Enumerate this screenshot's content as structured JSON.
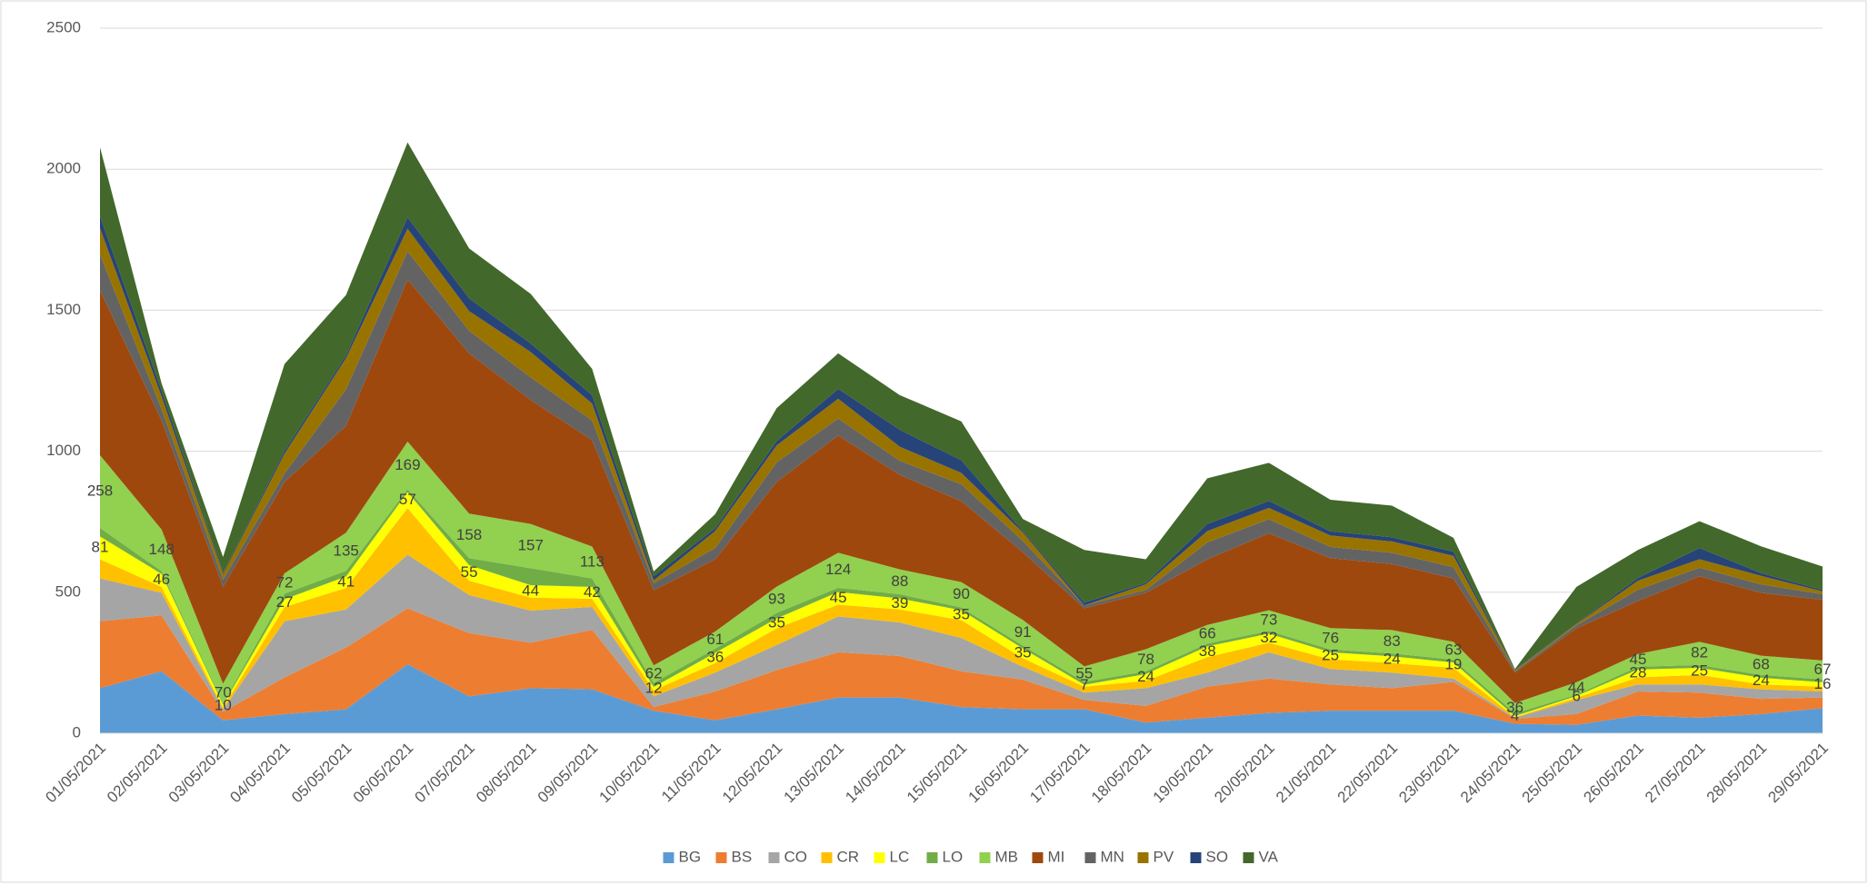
{
  "chart_data": {
    "type": "stacked_area",
    "categories": [
      "01/05/2021",
      "02/05/2021",
      "03/05/2021",
      "04/05/2021",
      "05/05/2021",
      "06/05/2021",
      "07/05/2021",
      "08/05/2021",
      "09/05/2021",
      "10/05/2021",
      "11/05/2021",
      "12/05/2021",
      "13/05/2021",
      "14/05/2021",
      "15/05/2021",
      "16/05/2021",
      "17/05/2021",
      "18/05/2021",
      "19/05/2021",
      "20/05/2021",
      "21/05/2021",
      "22/05/2021",
      "23/05/2021",
      "24/05/2021",
      "25/05/2021",
      "26/05/2021",
      "27/05/2021",
      "28/05/2021",
      "29/05/2021"
    ],
    "ylim": [
      0,
      2500
    ],
    "yticks": [
      0,
      500,
      1000,
      1500,
      2000,
      2500
    ],
    "grid": true,
    "legend": "bottom",
    "series": [
      {
        "name": "BG",
        "color": "#5b9bd5",
        "values": [
          160,
          220,
          46,
          68,
          85,
          245,
          131,
          160,
          156,
          80,
          46,
          85,
          127,
          127,
          93,
          85,
          85,
          38,
          55,
          72,
          80,
          80,
          80,
          34,
          30,
          63,
          55,
          68,
          89
        ]
      },
      {
        "name": "BS",
        "color": "#ed7d31",
        "values": [
          237,
          198,
          30,
          130,
          219,
          198,
          224,
          161,
          211,
          13,
          102,
          139,
          160,
          147,
          127,
          105,
          33,
          59,
          110,
          122,
          93,
          80,
          102,
          17,
          38,
          85,
          89,
          54,
          38
        ]
      },
      {
        "name": "CO",
        "color": "#a5a5a5",
        "values": [
          152,
          80,
          8,
          199,
          135,
          190,
          135,
          114,
          81,
          38,
          67,
          89,
          127,
          119,
          118,
          46,
          26,
          63,
          50,
          93,
          55,
          55,
          12,
          4,
          50,
          25,
          29,
          34,
          21
        ]
      },
      {
        "name": "CR",
        "color": "#ffc000",
        "values": [
          68,
          21,
          7,
          51,
          76,
          165,
          51,
          46,
          29,
          21,
          34,
          59,
          42,
          46,
          63,
          30,
          21,
          26,
          55,
          34,
          34,
          34,
          38,
          2,
          8,
          25,
          34,
          17,
          17
        ]
      },
      {
        "name": "LC",
        "color": "#ffff00",
        "labels": true,
        "values": [
          81,
          46,
          10,
          27,
          41,
          57,
          55,
          44,
          42,
          12,
          36,
          35,
          45,
          39,
          35,
          35,
          7,
          24,
          38,
          32,
          25,
          24,
          19,
          4,
          6,
          28,
          25,
          24,
          16
        ]
      },
      {
        "name": "LO",
        "color": "#70ad47",
        "values": [
          30,
          10,
          5,
          20,
          20,
          10,
          25,
          60,
          30,
          15,
          15,
          20,
          15,
          15,
          10,
          10,
          10,
          10,
          10,
          10,
          10,
          10,
          10,
          10,
          5,
          10,
          10,
          10,
          10
        ]
      },
      {
        "name": "MB",
        "color": "#92d050",
        "labels": true,
        "values": [
          258,
          148,
          70,
          72,
          135,
          169,
          158,
          157,
          113,
          62,
          61,
          93,
          124,
          88,
          90,
          91,
          55,
          78,
          66,
          73,
          76,
          83,
          63,
          36,
          44,
          45,
          82,
          68,
          67
        ]
      },
      {
        "name": "MI",
        "color": "#9e480e",
        "values": [
          585,
          387,
          343,
          324,
          379,
          575,
          568,
          440,
          377,
          266,
          256,
          371,
          416,
          335,
          287,
          240,
          206,
          200,
          233,
          273,
          248,
          234,
          225,
          108,
          191,
          188,
          233,
          223,
          215
        ]
      },
      {
        "name": "MN",
        "color": "#636363",
        "values": [
          127,
          40,
          25,
          30,
          130,
          100,
          80,
          80,
          70,
          25,
          40,
          70,
          60,
          50,
          60,
          40,
          10,
          10,
          60,
          50,
          40,
          40,
          40,
          5,
          10,
          40,
          30,
          30,
          20
        ]
      },
      {
        "name": "PV",
        "color": "#997300",
        "values": [
          93,
          45,
          20,
          70,
          110,
          80,
          70,
          90,
          60,
          10,
          60,
          60,
          70,
          50,
          40,
          30,
          0,
          20,
          40,
          40,
          40,
          40,
          40,
          3,
          5,
          32,
          30,
          30,
          10
        ]
      },
      {
        "name": "SO",
        "color": "#264478",
        "values": [
          42,
          20,
          5,
          10,
          10,
          40,
          45,
          30,
          30,
          15,
          10,
          15,
          35,
          60,
          45,
          5,
          10,
          5,
          25,
          25,
          15,
          15,
          15,
          2,
          2,
          10,
          40,
          10,
          5
        ]
      },
      {
        "name": "VA",
        "color": "#43682b",
        "values": [
          245,
          26,
          56,
          308,
          214,
          266,
          177,
          176,
          93,
          17,
          50,
          117,
          126,
          123,
          138,
          43,
          187,
          84,
          162,
          135,
          112,
          112,
          49,
          3,
          130,
          99,
          95,
          95,
          83
        ]
      }
    ]
  }
}
